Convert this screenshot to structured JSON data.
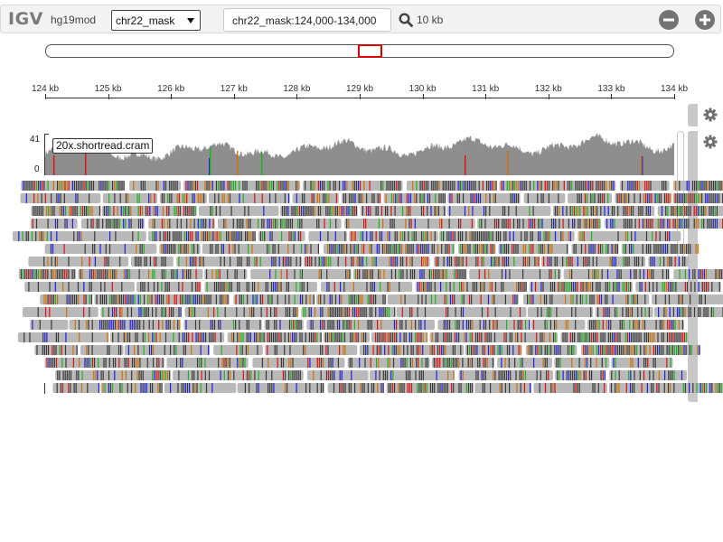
{
  "navbar": {
    "logo": "IGV",
    "genome": "hg19mod",
    "chromosome": "chr22_mask",
    "locus": "chr22_mask:124,000-134,000",
    "window_size": "10 kb"
  },
  "ruler": {
    "ticks": [
      {
        "label": "124 kb",
        "kb": 124
      },
      {
        "label": "125 kb",
        "kb": 125
      },
      {
        "label": "126 kb",
        "kb": 126
      },
      {
        "label": "127 kb",
        "kb": 127
      },
      {
        "label": "128 kb",
        "kb": 128
      },
      {
        "label": "129 kb",
        "kb": 129
      },
      {
        "label": "130 kb",
        "kb": 130
      },
      {
        "label": "131 kb",
        "kb": 131
      },
      {
        "label": "132 kb",
        "kb": 132
      },
      {
        "label": "133 kb",
        "kb": 133
      },
      {
        "label": "134 kb",
        "kb": 134
      }
    ],
    "start_kb": 124,
    "end_kb": 134
  },
  "track": {
    "name": "20x.shortread.cram",
    "coverage_max": "41",
    "coverage_min": "0"
  },
  "colors": {
    "read": "#b9b9b9",
    "coverage": "#8e8e8e",
    "mismatch_A": "#1db31d",
    "mismatch_C": "#1f1fe6",
    "mismatch_G": "#d17105",
    "mismatch_T": "#e01010",
    "ideogram_box": "#e00000"
  }
}
